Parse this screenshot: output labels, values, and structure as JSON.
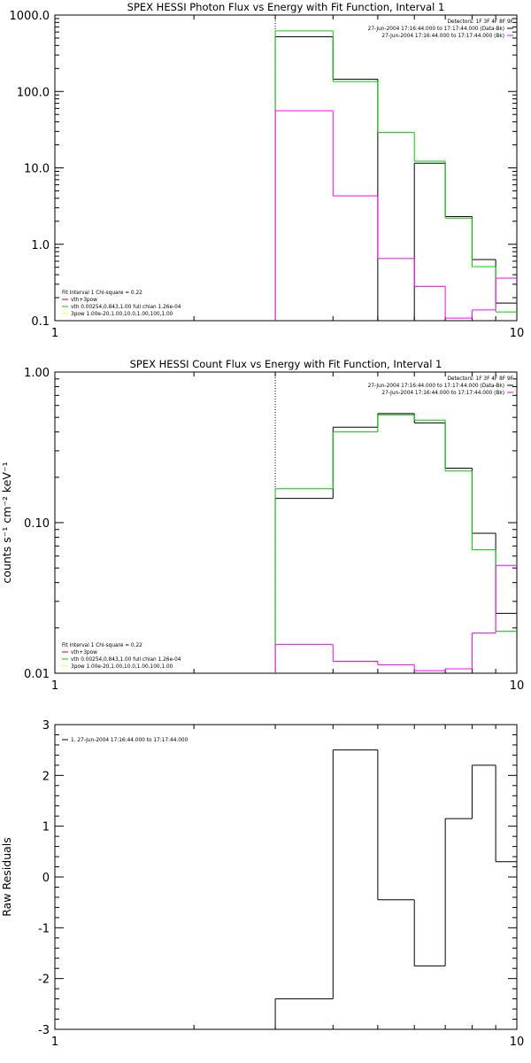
{
  "chart_data": [
    {
      "id": "photon",
      "type": "line",
      "title": "SPEX HESSI Photon Flux vs Energy with Fit Function, Interval 1",
      "xlabel": "",
      "ylabel": "",
      "xscale": "log",
      "yscale": "log",
      "xlim": [
        1,
        10
      ],
      "ylim": [
        0.1,
        1000
      ],
      "xticks": [
        {
          "v": 1,
          "label": "1"
        },
        {
          "v": 10,
          "label": "10"
        }
      ],
      "yticks": [
        {
          "v": 0.1,
          "label": "0.1"
        },
        {
          "v": 1,
          "label": "1.0"
        },
        {
          "v": 10,
          "label": "10.0"
        },
        {
          "v": 100,
          "label": "100.0"
        },
        {
          "v": 1000,
          "label": "1000.0"
        }
      ],
      "vline": 3.0,
      "edges": [
        3.0,
        4.0,
        5.0,
        6.0,
        7.0,
        8.0,
        9.0,
        10.0
      ],
      "series": [
        {
          "color": "#000000",
          "values": [
            520,
            145,
            null,
            11.5,
            2.3,
            0.63,
            0.17
          ]
        },
        {
          "color": "#00cc00",
          "values": [
            620,
            135,
            29,
            12.2,
            2.2,
            0.51,
            0.13
          ]
        },
        {
          "color": "#ff00ff",
          "values": [
            56,
            4.3,
            0.65,
            0.28,
            0.108,
            0.138,
            0.36
          ]
        }
      ],
      "legend_right": {
        "header": "Detectors: 1F 3F 4F 8F 9F",
        "entries": [
          {
            "text": "27-Jun-2004 17:16:44.000 to 17:17:44.000 (Data-Bk)",
            "color": "#000000"
          },
          {
            "text": "27-Jun-2004 17:16:44.000 to 17:17:44.000 (Bk)",
            "color": "#ff00ff"
          }
        ]
      },
      "legend_left": {
        "header": "Fit Interval 1    Chi-square = 0.22",
        "entries": [
          {
            "text": "vth+3pow",
            "color": "#cc0000"
          },
          {
            "text": "vth 0.00254,0.843,1.00   full chian 1.26e-04",
            "color": "#00cc00"
          },
          {
            "text": "3pow 1.00e-20,1.00,10.0,1.00,100,1.00",
            "color": "#ffff00"
          }
        ]
      }
    },
    {
      "id": "count",
      "type": "line",
      "title": "SPEX HESSI Count Flux vs Energy with Fit Function, Interval 1",
      "xlabel": "",
      "ylabel": "counts s⁻¹ cm⁻² keV⁻¹",
      "xscale": "log",
      "yscale": "log",
      "xlim": [
        1,
        10
      ],
      "ylim": [
        0.01,
        1.0
      ],
      "xticks": [
        {
          "v": 1,
          "label": "1"
        },
        {
          "v": 10,
          "label": "10"
        }
      ],
      "yticks": [
        {
          "v": 0.01,
          "label": "0.01"
        },
        {
          "v": 0.1,
          "label": "0.10"
        },
        {
          "v": 1.0,
          "label": "1.00"
        }
      ],
      "vline": 3.0,
      "edges": [
        3.0,
        4.0,
        5.0,
        6.0,
        7.0,
        8.0,
        9.0,
        10.0
      ],
      "series": [
        {
          "color": "#000000",
          "values": [
            0.145,
            0.43,
            0.53,
            0.46,
            0.23,
            0.085,
            0.025
          ]
        },
        {
          "color": "#00cc00",
          "values": [
            0.168,
            0.4,
            0.52,
            0.48,
            0.22,
            0.066,
            0.019
          ]
        },
        {
          "color": "#ff00ff",
          "values": [
            0.0155,
            0.012,
            0.0114,
            0.0104,
            0.0107,
            0.0185,
            0.052
          ]
        }
      ],
      "legend_right": {
        "header": "Detectors: 1F 3F 4F 8F 9F",
        "entries": [
          {
            "text": "27-Jun-2004 17:16:44.000 to 17:17:44.000 (Data-Bk)",
            "color": "#000000"
          },
          {
            "text": "27-Jun-2004 17:16:44.000 to 17:17:44.000 (Bk)",
            "color": "#ff00ff"
          }
        ]
      },
      "legend_left": {
        "header": "Fit Interval 1    Chi-square = 0.22",
        "entries": [
          {
            "text": "vth+3pow",
            "color": "#cc0000"
          },
          {
            "text": "vth 0.00254,0.843,1.00   full chian 1.26e-04",
            "color": "#00cc00"
          },
          {
            "text": "3pow 1.00e-20,1.00,10.0,1.00,100,1.00",
            "color": "#ffff00"
          }
        ]
      }
    },
    {
      "id": "residuals",
      "type": "line",
      "title": "",
      "xlabel": "",
      "ylabel": "Raw Residuals",
      "xscale": "log",
      "yscale": "linear",
      "xlim": [
        1,
        10
      ],
      "ylim": [
        -3,
        3
      ],
      "xticks": [
        {
          "v": 1,
          "label": "1"
        },
        {
          "v": 10,
          "label": "10"
        }
      ],
      "yticks": [
        {
          "v": -3,
          "label": "-3"
        },
        {
          "v": -2,
          "label": "-2"
        },
        {
          "v": -1,
          "label": "-1"
        },
        {
          "v": 0,
          "label": "0"
        },
        {
          "v": 1,
          "label": "1"
        },
        {
          "v": 2,
          "label": "2"
        },
        {
          "v": 3,
          "label": "3"
        }
      ],
      "edges": [
        3.0,
        4.0,
        5.0,
        6.0,
        7.0,
        8.0,
        9.0,
        10.0
      ],
      "series": [
        {
          "color": "#000000",
          "values": [
            -2.4,
            2.5,
            -0.45,
            -1.75,
            1.15,
            2.2,
            0.3
          ]
        }
      ],
      "legend_left": {
        "header": "",
        "entries": [
          {
            "text": "1. 27-Jun-2004 17:16:44.000 to 17:17:44.000",
            "color": "#000000"
          }
        ]
      }
    }
  ]
}
